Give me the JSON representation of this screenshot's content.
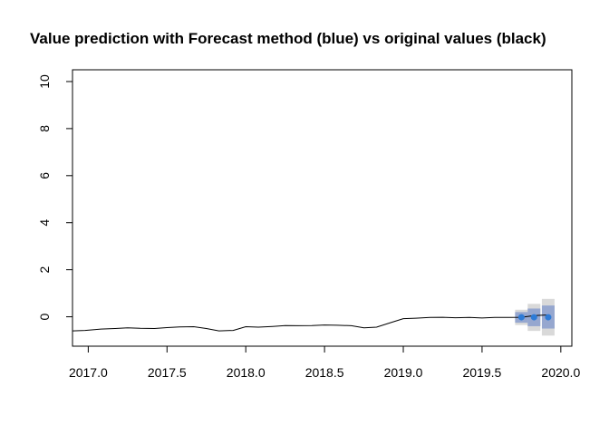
{
  "chart_data": {
    "type": "line",
    "title": "Value prediction with Forecast method (blue) vs original values (black)",
    "xlabel": "",
    "ylabel": "",
    "xlim": [
      2016.9,
      2020.07
    ],
    "ylim": [
      -1.25,
      10.5
    ],
    "x_ticks": [
      {
        "value": 2017.0,
        "label": "2017.0"
      },
      {
        "value": 2017.5,
        "label": "2017.5"
      },
      {
        "value": 2018.0,
        "label": "2018.0"
      },
      {
        "value": 2018.5,
        "label": "2018.5"
      },
      {
        "value": 2019.0,
        "label": "2019.0"
      },
      {
        "value": 2019.5,
        "label": "2019.5"
      },
      {
        "value": 2020.0,
        "label": "2020.0"
      }
    ],
    "y_ticks": [
      {
        "value": 0,
        "label": "0"
      },
      {
        "value": 2,
        "label": "2"
      },
      {
        "value": 4,
        "label": "4"
      },
      {
        "value": 6,
        "label": "6"
      },
      {
        "value": 8,
        "label": "8"
      },
      {
        "value": 10,
        "label": "10"
      }
    ],
    "grid": false,
    "legend": "none",
    "series": [
      {
        "role": "original",
        "color": "#000000",
        "x": [
          2016.9,
          2016.98,
          2017.08,
          2017.17,
          2017.25,
          2017.33,
          2017.42,
          2017.5,
          2017.58,
          2017.67,
          2017.75,
          2017.83,
          2017.92,
          2018.0,
          2018.08,
          2018.17,
          2018.25,
          2018.33,
          2018.42,
          2018.5,
          2018.58,
          2018.67,
          2018.75,
          2018.83,
          2018.92,
          2019.0,
          2019.08,
          2019.17,
          2019.25,
          2019.33,
          2019.42,
          2019.5,
          2019.58,
          2019.67,
          2019.75,
          2019.83,
          2019.92
        ],
        "y": [
          -0.6,
          -0.58,
          -0.52,
          -0.5,
          -0.47,
          -0.49,
          -0.5,
          -0.46,
          -0.43,
          -0.42,
          -0.5,
          -0.6,
          -0.58,
          -0.42,
          -0.44,
          -0.41,
          -0.37,
          -0.38,
          -0.37,
          -0.35,
          -0.36,
          -0.38,
          -0.47,
          -0.44,
          -0.25,
          -0.08,
          -0.06,
          -0.03,
          -0.02,
          -0.04,
          -0.03,
          -0.05,
          -0.03,
          -0.03,
          -0.02,
          0.05,
          0.08
        ]
      },
      {
        "role": "forecast",
        "color": "#2E7BD6",
        "x": [
          2019.75,
          2019.83,
          2019.92
        ],
        "y": [
          -0.02,
          -0.02,
          -0.02
        ],
        "interval_80": [
          [
            -0.25,
            0.2
          ],
          [
            -0.4,
            0.35
          ],
          [
            -0.5,
            0.48
          ]
        ],
        "interval_95": [
          [
            -0.35,
            0.3
          ],
          [
            -0.6,
            0.55
          ],
          [
            -0.8,
            0.76
          ]
        ]
      }
    ],
    "colors": {
      "band_80": "#96A7CF",
      "band_95": "#D9D9D9",
      "forecast_point": "#2E7BD6",
      "original_line": "#000000"
    }
  }
}
